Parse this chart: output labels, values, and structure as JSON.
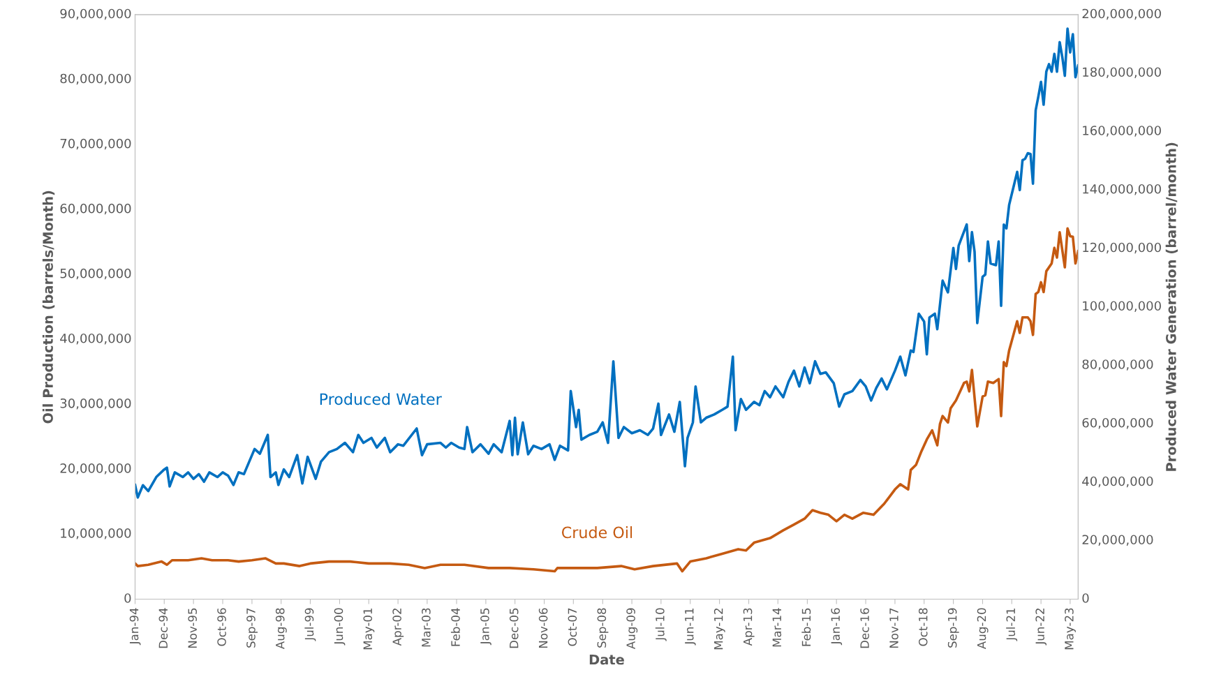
{
  "chart_data": {
    "type": "line",
    "xlabel": "Date",
    "ylabel": "Oil Production (barrels/Month)",
    "y2label": "Produced Water Generation (barrel/month)",
    "legend": false,
    "grid": false,
    "marker": "none",
    "line_style": "solid",
    "xlim": [
      "1994-01",
      "2023-08"
    ],
    "xticks": [
      {
        "value": "1994-01",
        "label": "Jan-94"
      },
      {
        "value": "1994-12",
        "label": "Dec-94"
      },
      {
        "value": "1995-11",
        "label": "Nov-95"
      },
      {
        "value": "1996-10",
        "label": "Oct-96"
      },
      {
        "value": "1997-09",
        "label": "Sep-97"
      },
      {
        "value": "1998-08",
        "label": "Aug-98"
      },
      {
        "value": "1999-07",
        "label": "Jul-99"
      },
      {
        "value": "2000-06",
        "label": "Jun-00"
      },
      {
        "value": "2001-05",
        "label": "May-01"
      },
      {
        "value": "2002-04",
        "label": "Apr-02"
      },
      {
        "value": "2003-03",
        "label": "Mar-03"
      },
      {
        "value": "2004-02",
        "label": "Feb-04"
      },
      {
        "value": "2005-01",
        "label": "Jan-05"
      },
      {
        "value": "2005-12",
        "label": "Dec-05"
      },
      {
        "value": "2006-11",
        "label": "Nov-06"
      },
      {
        "value": "2007-10",
        "label": "Oct-07"
      },
      {
        "value": "2008-09",
        "label": "Sep-08"
      },
      {
        "value": "2009-08",
        "label": "Aug-09"
      },
      {
        "value": "2010-07",
        "label": "Jul-10"
      },
      {
        "value": "2011-06",
        "label": "Jun-11"
      },
      {
        "value": "2012-05",
        "label": "May-12"
      },
      {
        "value": "2013-04",
        "label": "Apr-13"
      },
      {
        "value": "2014-03",
        "label": "Mar-14"
      },
      {
        "value": "2015-02",
        "label": "Feb-15"
      },
      {
        "value": "2016-01",
        "label": "Jan-16"
      },
      {
        "value": "2016-12",
        "label": "Dec-16"
      },
      {
        "value": "2017-11",
        "label": "Nov-17"
      },
      {
        "value": "2018-10",
        "label": "Oct-18"
      },
      {
        "value": "2019-09",
        "label": "Sep-19"
      },
      {
        "value": "2020-08",
        "label": "Aug-20"
      },
      {
        "value": "2021-07",
        "label": "Jul-21"
      },
      {
        "value": "2022-06",
        "label": "Jun-22"
      },
      {
        "value": "2023-05",
        "label": "May-23"
      }
    ],
    "ylim": [
      0,
      90000000
    ],
    "yticks": [
      0,
      {
        "value": 10000000,
        "label": "10,000,000"
      },
      {
        "value": 20000000,
        "label": "20,000,000"
      },
      {
        "value": 30000000,
        "label": "30,000,000"
      },
      {
        "value": 40000000,
        "label": "40,000,000"
      },
      {
        "value": 50000000,
        "label": "50,000,000"
      },
      {
        "value": 60000000,
        "label": "60,000,000"
      },
      {
        "value": 70000000,
        "label": "70,000,000"
      },
      {
        "value": 80000000,
        "label": "80,000,000"
      },
      {
        "value": 90000000,
        "label": "90,000,000"
      }
    ],
    "y2lim": [
      0,
      200000000
    ],
    "y2ticks": [
      0,
      {
        "value": 20000000,
        "label": "20,000,000"
      },
      {
        "value": 40000000,
        "label": "40,000,000"
      },
      {
        "value": 60000000,
        "label": "60,000,000"
      },
      {
        "value": 80000000,
        "label": "80,000,000"
      },
      {
        "value": 100000000,
        "label": "100,000,000"
      },
      {
        "value": 120000000,
        "label": "120,000,000"
      },
      {
        "value": 140000000,
        "label": "140,000,000"
      },
      {
        "value": 160000000,
        "label": "160,000,000"
      },
      {
        "value": 180000000,
        "label": "180,000,000"
      },
      {
        "value": 200000000,
        "label": "200,000,000"
      }
    ],
    "series": [
      {
        "name": "Produced Water",
        "color": "#0070c0",
        "axis": "y2",
        "x": [
          "1994-01",
          "1994-02",
          "1994-04",
          "1994-06",
          "1994-09",
          "1994-12",
          "1995-01",
          "1995-02",
          "1995-04",
          "1995-07",
          "1995-09",
          "1995-11",
          "1996-01",
          "1996-03",
          "1996-05",
          "1996-08",
          "1996-10",
          "1996-12",
          "1997-02",
          "1997-04",
          "1997-06",
          "1997-08",
          "1997-10",
          "1997-12",
          "1998-03",
          "1998-04",
          "1998-06",
          "1998-07",
          "1998-09",
          "1998-11",
          "1999-02",
          "1999-04",
          "1999-06",
          "1999-09",
          "1999-11",
          "2000-02",
          "2000-05",
          "2000-08",
          "2000-11",
          "2001-01",
          "2001-03",
          "2001-06",
          "2001-08",
          "2001-11",
          "2002-01",
          "2002-04",
          "2002-06",
          "2002-11",
          "2003-01",
          "2003-03",
          "2003-08",
          "2003-10",
          "2003-12",
          "2004-03",
          "2004-05",
          "2004-06",
          "2004-08",
          "2004-11",
          "2005-02",
          "2005-04",
          "2005-07",
          "2005-10",
          "2005-11",
          "2005-12",
          "2006-01",
          "2006-03",
          "2006-05",
          "2006-07",
          "2006-10",
          "2007-01",
          "2007-03",
          "2007-05",
          "2007-08",
          "2007-09",
          "2007-11",
          "2007-12",
          "2008-01",
          "2008-04",
          "2008-07",
          "2008-09",
          "2008-11",
          "2009-01",
          "2009-03",
          "2009-05",
          "2009-08",
          "2009-11",
          "2010-02",
          "2010-04",
          "2010-06",
          "2010-07",
          "2010-10",
          "2010-12",
          "2011-02",
          "2011-04",
          "2011-05",
          "2011-07",
          "2011-08",
          "2011-10",
          "2011-12",
          "2012-03",
          "2012-06",
          "2012-08",
          "2012-10",
          "2012-11",
          "2013-01",
          "2013-03",
          "2013-06",
          "2013-08",
          "2013-10",
          "2013-12",
          "2014-02",
          "2014-05",
          "2014-07",
          "2014-09",
          "2014-11",
          "2015-01",
          "2015-03",
          "2015-05",
          "2015-07",
          "2015-09",
          "2015-12",
          "2016-02",
          "2016-04",
          "2016-07",
          "2016-10",
          "2016-12",
          "2017-02",
          "2017-04",
          "2017-06",
          "2017-08",
          "2017-11",
          "2018-01",
          "2018-03",
          "2018-05",
          "2018-06",
          "2018-08",
          "2018-10",
          "2018-11",
          "2018-12",
          "2019-02",
          "2019-03",
          "2019-05",
          "2019-07",
          "2019-09",
          "2019-10",
          "2019-11",
          "2020-02",
          "2020-03",
          "2020-04",
          "2020-05",
          "2020-06",
          "2020-08",
          "2020-09",
          "2020-10",
          "2020-11",
          "2021-01",
          "2021-02",
          "2021-03",
          "2021-04",
          "2021-05",
          "2021-06",
          "2021-09",
          "2021-10",
          "2021-11",
          "2021-12",
          "2022-01",
          "2022-02",
          "2022-03",
          "2022-04",
          "2022-05",
          "2022-06",
          "2022-07",
          "2022-08",
          "2022-09",
          "2022-10",
          "2022-11",
          "2022-12",
          "2023-01",
          "2023-02",
          "2023-03",
          "2023-04",
          "2023-05",
          "2023-06",
          "2023-07",
          "2023-08"
        ],
        "values": [
          39100000,
          34800000,
          39000000,
          37000000,
          41800000,
          44400000,
          45000000,
          38600000,
          43400000,
          41800000,
          43400000,
          41200000,
          42800000,
          40200000,
          43400000,
          41800000,
          43400000,
          42300000,
          39100000,
          43400000,
          42800000,
          47100000,
          51400000,
          49800000,
          56200000,
          41800000,
          43400000,
          39100000,
          44400000,
          41800000,
          49300000,
          39600000,
          48700000,
          41200000,
          47100000,
          50300000,
          51400000,
          53500000,
          50300000,
          56200000,
          53500000,
          55200000,
          51900000,
          55200000,
          50300000,
          53000000,
          52500000,
          58400000,
          49300000,
          53000000,
          53500000,
          51900000,
          53500000,
          51900000,
          51400000,
          58900000,
          50300000,
          53000000,
          49800000,
          53000000,
          50300000,
          61000000,
          49300000,
          62100000,
          49600000,
          60500000,
          49600000,
          52500000,
          51400000,
          53000000,
          47700000,
          52500000,
          50900000,
          71200000,
          58900000,
          64800000,
          54600000,
          56200000,
          57300000,
          60500000,
          53500000,
          81400000,
          55200000,
          58900000,
          56800000,
          57800000,
          56200000,
          58400000,
          66900000,
          56200000,
          63200000,
          57300000,
          67500000,
          45500000,
          55200000,
          60500000,
          72800000,
          60500000,
          62100000,
          63200000,
          64800000,
          65900000,
          83000000,
          57800000,
          68500000,
          64800000,
          67500000,
          66400000,
          71200000,
          69100000,
          72800000,
          69100000,
          74400000,
          78200000,
          72800000,
          79300000,
          73900000,
          81400000,
          77100000,
          77600000,
          73900000,
          65900000,
          70100000,
          71200000,
          75000000,
          72800000,
          68000000,
          72300000,
          75500000,
          71800000,
          78200000,
          83000000,
          76600000,
          85100000,
          84600000,
          97700000,
          95000000,
          83800000,
          96400000,
          97700000,
          92400000,
          109000000,
          105000000,
          120200000,
          113000000,
          121000000,
          128200000,
          115700000,
          125600000,
          118900000,
          94500000,
          110300000,
          111100000,
          122400000,
          114900000,
          114300000,
          122400000,
          100400000,
          128200000,
          126900000,
          134900000,
          146200000,
          140000000,
          150200000,
          150700000,
          152600000,
          152300000,
          142200000,
          167300000,
          171900000,
          177000000,
          169200000,
          180500000,
          183100000,
          180500000,
          186600000,
          180500000,
          190600000,
          185300000,
          179100000,
          195200000,
          187100000,
          193300000,
          178600000,
          182600000
        ]
      },
      {
        "name": "Crude Oil",
        "color": "#c55a11",
        "x": [
          "1994-01",
          "1994-02",
          "1994-06",
          "1994-11",
          "1995-01",
          "1995-03",
          "1995-09",
          "1996-02",
          "1996-06",
          "1996-12",
          "1997-04",
          "1997-09",
          "1998-02",
          "1998-06",
          "1998-09",
          "1999-03",
          "1999-07",
          "2000-02",
          "2000-10",
          "2001-05",
          "2002-01",
          "2002-08",
          "2003-02",
          "2003-08",
          "2004-05",
          "2005-02",
          "2005-10",
          "2006-07",
          "2007-03",
          "2007-04",
          "2007-10",
          "2008-07",
          "2009-04",
          "2009-09",
          "2010-04",
          "2011-01",
          "2011-03",
          "2011-06",
          "2011-12",
          "2012-06",
          "2012-12",
          "2013-03",
          "2013-06",
          "2013-12",
          "2014-05",
          "2014-09",
          "2015-01",
          "2015-04",
          "2015-07",
          "2015-10",
          "2016-01",
          "2016-04",
          "2016-07",
          "2016-11",
          "2017-03",
          "2017-07",
          "2017-11",
          "2018-01",
          "2018-04",
          "2018-05",
          "2018-07",
          "2018-09",
          "2018-11",
          "2019-01",
          "2019-03",
          "2019-04",
          "2019-05",
          "2019-07",
          "2019-08",
          "2019-10",
          "2020-01",
          "2020-02",
          "2020-03",
          "2020-04",
          "2020-06",
          "2020-08",
          "2020-09",
          "2020-10",
          "2020-12",
          "2021-02",
          "2021-03",
          "2021-04",
          "2021-05",
          "2021-06",
          "2021-09",
          "2021-10",
          "2021-11",
          "2022-01",
          "2022-02",
          "2022-03",
          "2022-04",
          "2022-05",
          "2022-06",
          "2022-07",
          "2022-08",
          "2022-10",
          "2022-11",
          "2022-12",
          "2023-01",
          "2023-03",
          "2023-04",
          "2023-05",
          "2023-06",
          "2023-07",
          "2023-08"
        ],
        "values": [
          5500000,
          5100000,
          5300000,
          5800000,
          5300000,
          6000000,
          6000000,
          6300000,
          6000000,
          6000000,
          5800000,
          6000000,
          6300000,
          5500000,
          5500000,
          5100000,
          5500000,
          5800000,
          5800000,
          5500000,
          5500000,
          5300000,
          4800000,
          5300000,
          5300000,
          4800000,
          4800000,
          4600000,
          4300000,
          4800000,
          4800000,
          4800000,
          5100000,
          4600000,
          5100000,
          5500000,
          4300000,
          5800000,
          6300000,
          7000000,
          7700000,
          7500000,
          8700000,
          9400000,
          10600000,
          11500000,
          12400000,
          13700000,
          13300000,
          13000000,
          12000000,
          13000000,
          12400000,
          13300000,
          13000000,
          14700000,
          16900000,
          17700000,
          16900000,
          19900000,
          20700000,
          22800000,
          24600000,
          26000000,
          23700000,
          27000000,
          28200000,
          27200000,
          29400000,
          30600000,
          33300000,
          33500000,
          32000000,
          35300000,
          26600000,
          31200000,
          31400000,
          33500000,
          33300000,
          33900000,
          28200000,
          36500000,
          35900000,
          38300000,
          42800000,
          41000000,
          43400000,
          43400000,
          42800000,
          40700000,
          47000000,
          47300000,
          48800000,
          47300000,
          50500000,
          51700000,
          54100000,
          52600000,
          56500000,
          51100000,
          57100000,
          55900000,
          55800000,
          51700000,
          53600000
        ]
      }
    ]
  }
}
